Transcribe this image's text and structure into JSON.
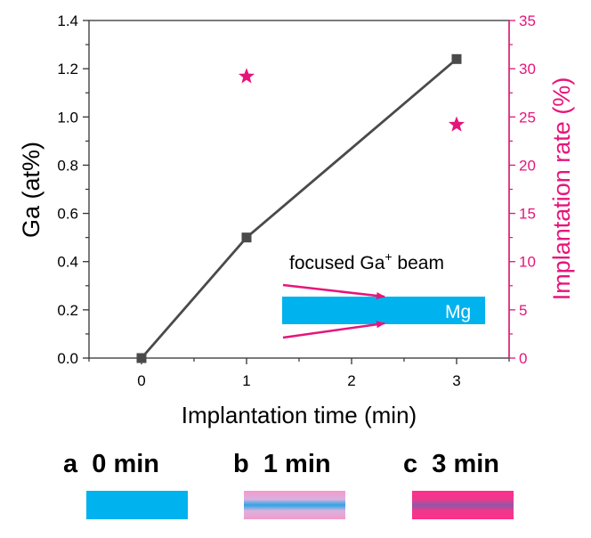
{
  "chart_data": {
    "type": "line",
    "title": "",
    "xlabel": "Implantation time (min)",
    "ylabel": "Ga (at%)",
    "y2label": "Implantation rate (%)",
    "xlim": [
      -0.5,
      3.5
    ],
    "ylim": [
      0,
      1.4
    ],
    "y2lim": [
      0,
      35
    ],
    "x_ticks": [
      "0",
      "1",
      "2",
      "3"
    ],
    "y_ticks": [
      "0.0",
      "0.2",
      "0.4",
      "0.6",
      "0.8",
      "1.0",
      "1.2",
      "1.4"
    ],
    "y2_ticks": [
      "0",
      "5",
      "10",
      "15",
      "20",
      "25",
      "30",
      "35"
    ],
    "series": [
      {
        "name": "Ga (at%)",
        "axis": "left",
        "marker": "square",
        "color": "#4a4a4a",
        "x": [
          0,
          1,
          3
        ],
        "values": [
          0.0,
          0.5,
          1.24
        ]
      },
      {
        "name": "Implantation rate (%)",
        "axis": "right",
        "marker": "star",
        "color": "#e6157a",
        "x": [
          1,
          3
        ],
        "values": [
          29.2,
          24.2
        ]
      }
    ],
    "inset": {
      "beam_label": "focused Ga",
      "beam_superscript": "+",
      "beam_suffix": " beam",
      "sample_label": "Mg"
    }
  },
  "panels": [
    {
      "letter": "a",
      "label": "0 min"
    },
    {
      "letter": "b",
      "label": "1 min"
    },
    {
      "letter": "c",
      "label": "3 min"
    }
  ],
  "colors": {
    "axis_right": "#e6157a",
    "mg": "#00b2ee",
    "line": "#4a4a4a"
  }
}
